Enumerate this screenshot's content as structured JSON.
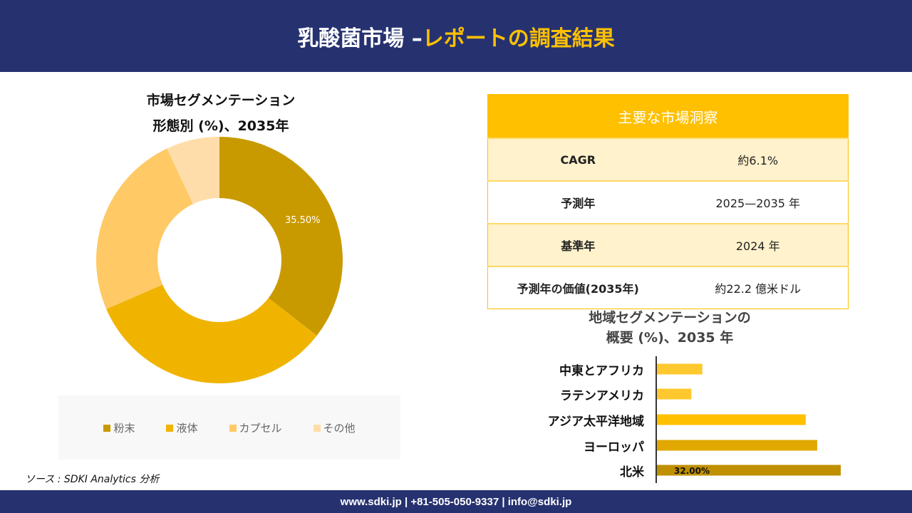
{
  "header": {
    "title_main": "乳酸菌市場 –",
    "title_accent": "レポートの調査結果"
  },
  "donut": {
    "title_line1": "市場セグメンテーション",
    "title_line2": "形態別 (%)、2035年"
  },
  "insights": {
    "title": "主要な市場洞察",
    "rows": [
      {
        "label": "CAGR",
        "value": "約6.1%"
      },
      {
        "label": "予測年",
        "value": "2025—2035 年"
      },
      {
        "label": "基準年",
        "value": "2024 年"
      },
      {
        "label": "予測年の価値(2035年)",
        "value": "約22.2 億米ドル"
      }
    ]
  },
  "bars": {
    "title_line1": "地域セグメンテーションの",
    "title_line2": "概要 (%)、2035 年"
  },
  "chart_data": [
    {
      "type": "pie",
      "subtype": "donut",
      "categories": [
        "粉末",
        "液体",
        "カプセル",
        "その他"
      ],
      "values": [
        35.5,
        33,
        24.5,
        7
      ],
      "data_labels": [
        "35.50%",
        "",
        "",
        ""
      ],
      "colors": [
        "#C99A00",
        "#F0B400",
        "#FFC966",
        "#FFDDAA"
      ],
      "legend_position": "bottom"
    },
    {
      "type": "bar",
      "orientation": "horizontal",
      "categories": [
        "中東とアフリカ",
        "ラテンアメリカ",
        "アジア太平洋地域",
        "ヨーロッパ",
        "北米"
      ],
      "values": [
        7.9,
        6,
        25.9,
        27.9,
        32
      ],
      "data_labels": [
        "",
        "",
        "",
        "",
        "32.00%"
      ],
      "colors": [
        "#FFC82E",
        "#FFC82E",
        "#FFC000",
        "#E0A800",
        "#C09000"
      ],
      "xlim": [
        0,
        32
      ]
    }
  ],
  "source": "ソース : SDKI Analytics 分析",
  "footer": "www.sdki.jp | +81-505-050-9337 | info@sdki.jp"
}
